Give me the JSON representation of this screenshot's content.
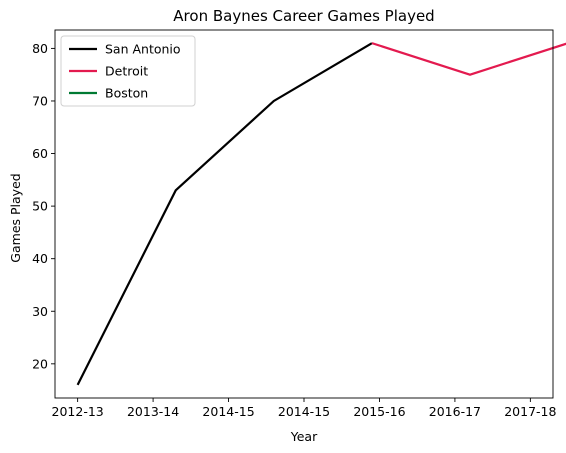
{
  "chart_data": {
    "type": "line",
    "title": "Aron Baynes Career Games Played",
    "xlabel": "Year",
    "ylabel": "Games Played",
    "x_tick_labels": [
      "2012-13",
      "2013-14",
      "2014-15",
      "2014-15",
      "2015-16",
      "2016-17",
      "2017-18"
    ],
    "yticks": [
      20,
      30,
      40,
      50,
      60,
      70,
      80
    ],
    "xlim": [
      -0.3,
      6.3
    ],
    "ylim": [
      13.5,
      83.5
    ],
    "grid": false,
    "legend_position": "upper-left",
    "series": [
      {
        "name": "San Antonio",
        "color": "#000000",
        "points": [
          {
            "x": 0,
            "y": 16
          },
          {
            "x": 1.3,
            "y": 53
          },
          {
            "x": 2.6,
            "y": 70
          },
          {
            "x": 3.9,
            "y": 81
          }
        ]
      },
      {
        "name": "Detroit",
        "color": "#e31a4f",
        "points": [
          {
            "x": 3.9,
            "y": 81
          },
          {
            "x": 5.2,
            "y": 75
          },
          {
            "x": 6.5,
            "y": 81
          }
        ]
      },
      {
        "name": "Boston",
        "color": "#007a33",
        "points": []
      }
    ]
  }
}
